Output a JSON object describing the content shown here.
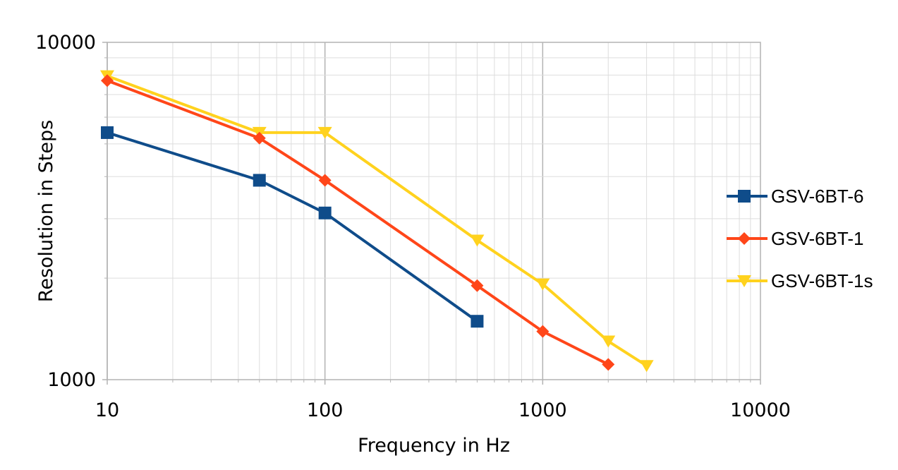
{
  "chart_data": {
    "type": "line",
    "title": "",
    "xlabel": "Frequency  in Hz",
    "ylabel": "Resolution in Steps",
    "xscale": "log",
    "yscale": "log",
    "xlim": [
      10,
      10000
    ],
    "ylim": [
      1000,
      10000
    ],
    "x_ticks": [
      "10",
      "100",
      "1000",
      "10000"
    ],
    "y_ticks": [
      "1000",
      "10000"
    ],
    "grid": true,
    "legend_position": "right",
    "series": [
      {
        "name": "GSV-6BT-6",
        "color": "#0f4c8a",
        "marker": "square",
        "x": [
          10,
          50,
          100,
          500
        ],
        "y": [
          5400,
          3900,
          3120,
          1490
        ]
      },
      {
        "name": "GSV-6BT-1",
        "color": "#ff4619",
        "marker": "diamond",
        "x": [
          10,
          50,
          100,
          500,
          1000,
          2000
        ],
        "y": [
          7700,
          5200,
          3900,
          1900,
          1390,
          1110
        ]
      },
      {
        "name": "GSV-6BT-1s",
        "color": "#ffd21e",
        "marker": "triangle-down",
        "x": [
          10,
          50,
          100,
          500,
          1000,
          2000,
          3000
        ],
        "y": [
          7950,
          5400,
          5400,
          2590,
          1920,
          1300,
          1100
        ]
      }
    ]
  }
}
